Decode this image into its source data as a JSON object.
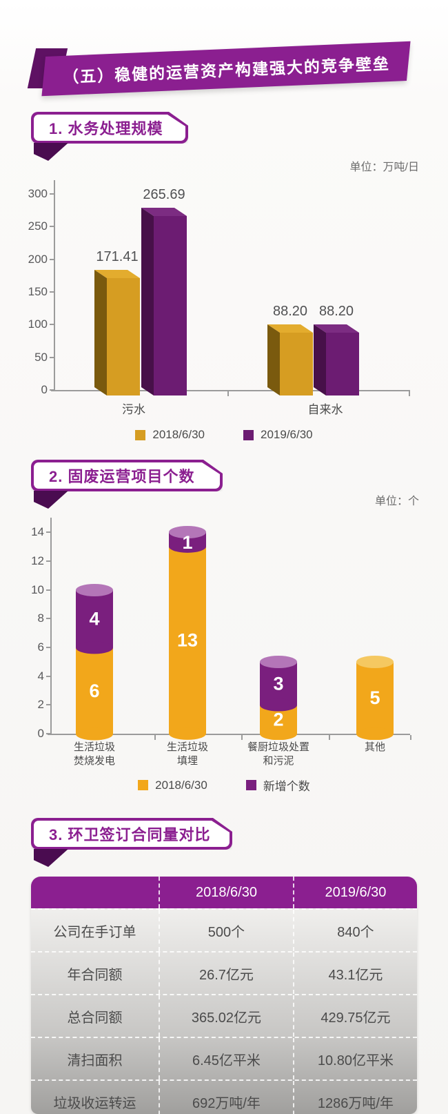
{
  "banner": {
    "title": "（五）稳健的运营资产构建强大的竞争壁垒"
  },
  "sections": [
    {
      "title": "1. 水务处理规模",
      "unit_label": "单位：万吨/日"
    },
    {
      "title": "2. 固废运营项目个数",
      "unit_label": "单位：个"
    },
    {
      "title": "3. 环卫签订合同量对比",
      "unit_label": ""
    }
  ],
  "chart_data": [
    {
      "type": "bar",
      "variant": "3d-column",
      "title": "水务处理规模",
      "unit": "万吨/日",
      "categories": [
        "污水",
        "自来水"
      ],
      "series": [
        {
          "name": "2018/6/30",
          "values": [
            171.41,
            88.2
          ],
          "color": "#D69D22",
          "color_side": "#7A5A0E",
          "color_top": "#E3AC2E"
        },
        {
          "name": "2019/6/30",
          "values": [
            265.69,
            88.2
          ],
          "color": "#6C1C72",
          "color_side": "#471049",
          "color_top": "#7C2C82"
        }
      ],
      "ylim": [
        0,
        300
      ],
      "yticks": [
        0,
        50,
        100,
        150,
        200,
        250,
        300
      ],
      "grid": false,
      "legend_position": "bottom",
      "value_label_decimals": 2
    },
    {
      "type": "bar",
      "variant": "stacked-cylinder",
      "title": "固废运营项目个数",
      "unit": "个",
      "categories": [
        "生活垃圾\n焚烧发电",
        "生活垃圾\n填埋",
        "餐厨垃圾处置\n和污泥",
        "其他"
      ],
      "series": [
        {
          "name": "2018/6/30",
          "values": [
            6,
            13,
            2,
            5
          ],
          "color": "#F2A71B",
          "color_cap": "#F5C861"
        },
        {
          "name": "新增个数",
          "values": [
            4,
            1,
            3,
            0
          ],
          "color": "#7A1F7E",
          "color_cap": "#B476B8"
        }
      ],
      "totals": [
        10,
        14,
        5,
        5
      ],
      "ylim": [
        0,
        14
      ],
      "yticks": [
        0,
        2,
        4,
        6,
        8,
        10,
        12,
        14
      ],
      "grid": false,
      "legend_position": "bottom"
    },
    {
      "type": "table",
      "title": "环卫签订合同量对比",
      "columns": [
        "",
        "2018/6/30",
        "2019/6/30"
      ],
      "rows": [
        [
          "公司在手订单",
          "500个",
          "840个"
        ],
        [
          "年合同额",
          "26.7亿元",
          "43.1亿元"
        ],
        [
          "总合同额",
          "365.02亿元",
          "429.75亿元"
        ],
        [
          "清扫面积",
          "6.45亿平米",
          "10.80亿平米"
        ],
        [
          "垃圾收运转运",
          "692万吨/年",
          "1286万吨/年"
        ]
      ]
    }
  ],
  "colors": {
    "brand_purple": "#8B1F90",
    "dark_purple_fold": "#4A0C50",
    "bar_gold": "#D69D22",
    "bar_purple": "#6C1C72",
    "cylinder_gold": "#F2A71B",
    "cylinder_purple": "#7A1F7E",
    "axis_gray": "#9B9B9B",
    "table_header": "#8B1F90"
  }
}
